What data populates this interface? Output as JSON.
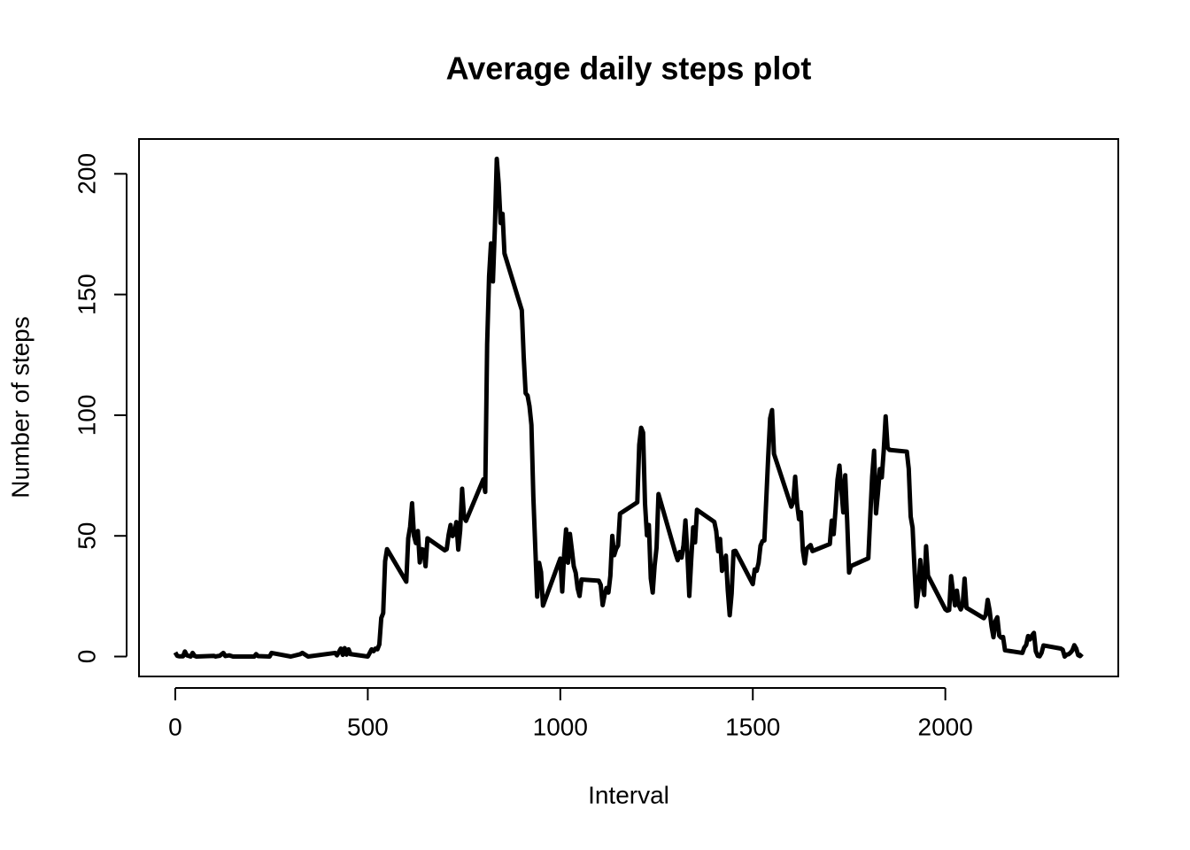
{
  "chart_data": {
    "type": "line",
    "title": "Average daily steps plot",
    "x_label": "Interval",
    "y_label": "Number of steps",
    "x": [
      0,
      5,
      10,
      20,
      25,
      30,
      40,
      45,
      50,
      55,
      100,
      105,
      110,
      115,
      125,
      130,
      140,
      150,
      200,
      205,
      210,
      215,
      245,
      250,
      300,
      325,
      330,
      345,
      415,
      420,
      430,
      435,
      440,
      445,
      450,
      455,
      500,
      505,
      510,
      515,
      520,
      525,
      530,
      535,
      540,
      545,
      550,
      600,
      605,
      610,
      615,
      620,
      625,
      630,
      635,
      640,
      645,
      650,
      655,
      700,
      705,
      710,
      715,
      720,
      725,
      730,
      735,
      740,
      745,
      750,
      755,
      800,
      805,
      810,
      815,
      820,
      825,
      830,
      835,
      840,
      845,
      850,
      855,
      900,
      905,
      910,
      915,
      920,
      925,
      930,
      935,
      940,
      945,
      950,
      955,
      1000,
      1005,
      1010,
      1015,
      1020,
      1025,
      1030,
      1035,
      1040,
      1045,
      1050,
      1055,
      1100,
      1105,
      1110,
      1115,
      1120,
      1125,
      1130,
      1135,
      1140,
      1145,
      1150,
      1155,
      1200,
      1205,
      1210,
      1215,
      1220,
      1225,
      1230,
      1235,
      1240,
      1245,
      1250,
      1255,
      1300,
      1305,
      1310,
      1315,
      1320,
      1325,
      1330,
      1335,
      1340,
      1345,
      1350,
      1355,
      1400,
      1405,
      1410,
      1415,
      1420,
      1425,
      1430,
      1435,
      1440,
      1445,
      1450,
      1455,
      1500,
      1505,
      1510,
      1515,
      1520,
      1525,
      1530,
      1535,
      1540,
      1545,
      1550,
      1555,
      1600,
      1605,
      1610,
      1615,
      1620,
      1625,
      1630,
      1635,
      1640,
      1645,
      1650,
      1655,
      1700,
      1705,
      1710,
      1715,
      1720,
      1725,
      1730,
      1735,
      1740,
      1745,
      1750,
      1755,
      1800,
      1805,
      1810,
      1815,
      1820,
      1825,
      1830,
      1835,
      1840,
      1845,
      1850,
      1855,
      1900,
      1905,
      1910,
      1915,
      1920,
      1925,
      1930,
      1935,
      1940,
      1945,
      1950,
      1955,
      2000,
      2005,
      2010,
      2015,
      2020,
      2025,
      2030,
      2035,
      2040,
      2045,
      2050,
      2055,
      2100,
      2105,
      2110,
      2115,
      2120,
      2125,
      2130,
      2135,
      2140,
      2145,
      2150,
      2155,
      2200,
      2205,
      2210,
      2215,
      2220,
      2225,
      2230,
      2235,
      2240,
      2245,
      2250,
      2255,
      2300,
      2305,
      2310,
      2315,
      2320,
      2325,
      2330,
      2335,
      2340,
      2345,
      2350,
      2355
    ],
    "values": [
      1.7,
      0.3,
      0.1,
      0.1,
      2.1,
      0.5,
      0,
      1.5,
      0.3,
      0,
      0.3,
      0,
      0.2,
      0.3,
      1.5,
      0.2,
      0.5,
      0,
      0,
      0,
      1,
      0.2,
      0,
      1.5,
      0,
      1,
      1.5,
      0,
      1.5,
      0.5,
      3.3,
      0.7,
      3.5,
      0.8,
      3,
      1,
      0,
      1.5,
      3,
      2.2,
      3.3,
      3,
      5,
      16,
      18,
      39.5,
      44.5,
      31,
      49,
      53.8,
      63.5,
      50,
      47,
      52,
      39,
      44.5,
      44.2,
      37.4,
      49,
      44,
      44.5,
      50.5,
      54.5,
      49.9,
      50.9,
      55.7,
      44.3,
      52.3,
      69.5,
      57.8,
      56.2,
      73.4,
      68.2,
      129.4,
      157.5,
      171.2,
      155.4,
      177.3,
      206.2,
      195.9,
      179.6,
      183.4,
      167,
      143.5,
      124,
      109.1,
      108.1,
      103.7,
      95.97,
      66.2,
      45.2,
      24.8,
      38.8,
      34.98,
      21.1,
      40.6,
      26.9,
      42.4,
      52.7,
      38.9,
      50.8,
      44.3,
      37.4,
      34.7,
      28.3,
      25.1,
      31.9,
      31.4,
      29.7,
      21.3,
      25.5,
      28.4,
      26.5,
      33.4,
      50,
      42,
      44.6,
      46,
      59.2,
      63.9,
      87.7,
      94.8,
      92.8,
      63.4,
      50.2,
      54.5,
      32.4,
      26.5,
      37.7,
      45.1,
      67.3,
      42.3,
      39.9,
      43.3,
      40.98,
      46.2,
      56.4,
      42.8,
      25.1,
      39.96,
      53.5,
      47.3,
      60.8,
      55.8,
      51.96,
      43.6,
      48.7,
      35.5,
      37.5,
      41.8,
      27.5,
      17.1,
      26.1,
      43.6,
      43.8,
      30,
      36.1,
      35.5,
      38.8,
      45.96,
      47.8,
      48.1,
      65.3,
      82.9,
      98.7,
      102.1,
      83.96,
      62.1,
      64.1,
      74.5,
      63.2,
      56.9,
      59.8,
      43.9,
      38.6,
      44.7,
      45.5,
      46.2,
      43.7,
      46.6,
      56.3,
      50.7,
      61.2,
      73.4,
      79.1,
      68.9,
      59.7,
      75.1,
      56.5,
      34.8,
      37.5,
      40.7,
      58,
      74.7,
      85.3,
      59.3,
      67.8,
      77.7,
      74.2,
      85.3,
      99.5,
      86.6,
      85.6,
      84.9,
      77.8,
      58,
      53.4,
      36.3,
      20.7,
      27.4,
      40,
      30.2,
      25.5,
      45.7,
      33.5,
      19.6,
      19,
      19.3,
      33.3,
      26.8,
      21.2,
      27.3,
      21.3,
      19.5,
      21.3,
      32.3,
      20.2,
      15.9,
      17.2,
      23.5,
      19.2,
      12.5,
      8,
      14.7,
      16.3,
      8.7,
      7.8,
      8.1,
      2.6,
      1.5,
      3.7,
      4.8,
      8.5,
      7.1,
      8.7,
      9.8,
      2.2,
      0.3,
      0.1,
      1.6,
      4.6,
      3.3,
      2.8,
      0,
      0.8,
      0.96,
      1.6,
      2.6,
      4.7,
      3.3,
      0.6,
      0.2,
      1.1
    ],
    "color": "#000000",
    "xlim": [
      -94.2,
      2449.2
    ],
    "ylim": [
      -8.25,
      214.42
    ],
    "xticks": [
      0,
      500,
      1000,
      1500,
      2000
    ],
    "yticks": [
      0,
      50,
      100,
      150,
      200
    ]
  }
}
